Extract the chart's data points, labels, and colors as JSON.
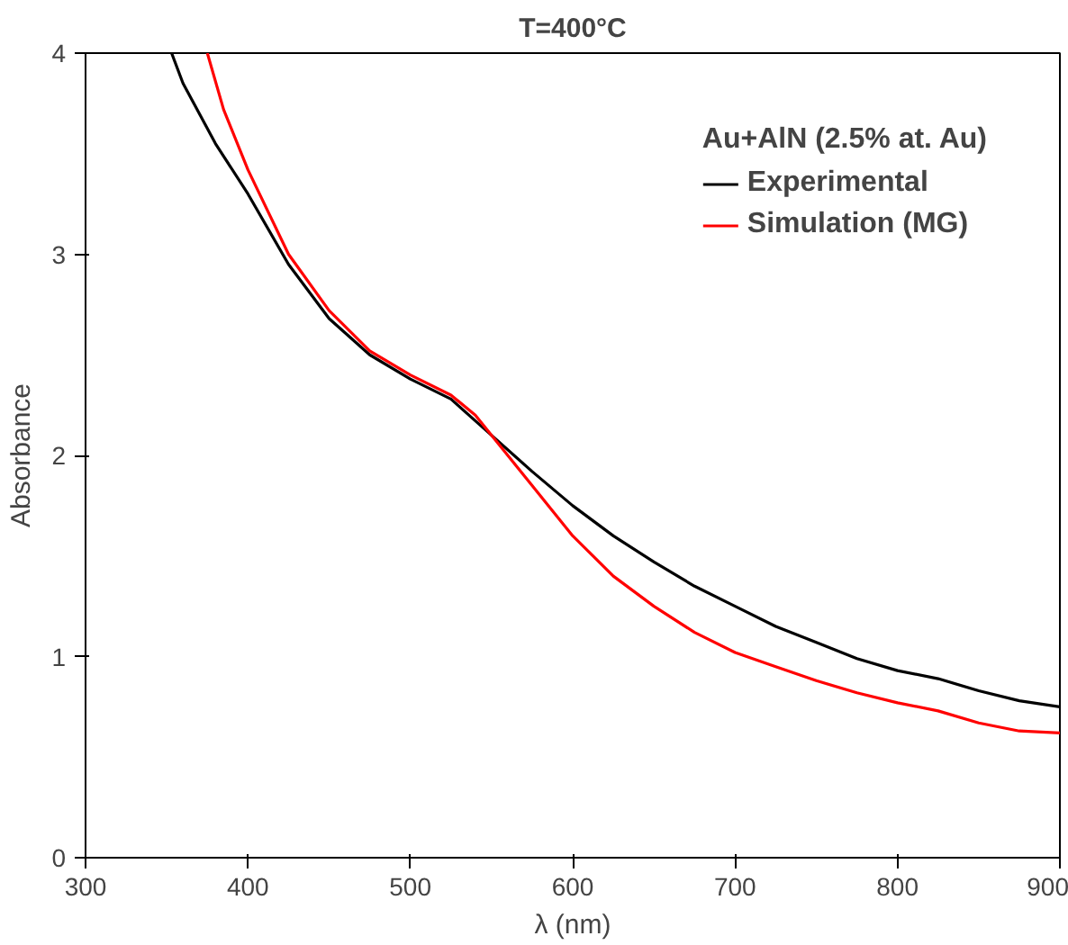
{
  "chart_data": {
    "type": "line",
    "title": "T=400°C",
    "xlabel": "λ (nm)",
    "ylabel": "Absorbance",
    "legend_title": "Au+AlN (2.5% at. Au)",
    "legend": "top right",
    "grid": false,
    "xlim": [
      300,
      900
    ],
    "xticks": [
      300,
      400,
      500,
      600,
      700,
      800,
      900
    ],
    "ylim": [
      0,
      4
    ],
    "yticks": [
      0,
      1,
      2,
      3,
      4
    ],
    "series": [
      {
        "name": "Experimental",
        "color": "#000000",
        "x": [
          353,
          360,
          370,
          380,
          400,
          425,
          450,
          475,
          500,
          525,
          550,
          575,
          600,
          625,
          650,
          675,
          700,
          725,
          750,
          775,
          800,
          825,
          850,
          875,
          900
        ],
        "values": [
          4.0,
          3.85,
          3.7,
          3.55,
          3.3,
          2.95,
          2.68,
          2.5,
          2.38,
          2.28,
          2.1,
          1.92,
          1.75,
          1.6,
          1.47,
          1.35,
          1.25,
          1.15,
          1.07,
          0.99,
          0.93,
          0.89,
          0.83,
          0.78,
          0.75
        ]
      },
      {
        "name": "Simulation (MG)",
        "color": "#ff0000",
        "x": [
          375,
          385,
          400,
          425,
          450,
          475,
          500,
          525,
          540,
          560,
          575,
          600,
          625,
          650,
          675,
          700,
          725,
          750,
          775,
          800,
          825,
          850,
          875,
          900
        ],
        "values": [
          4.0,
          3.72,
          3.42,
          3.0,
          2.72,
          2.52,
          2.4,
          2.3,
          2.2,
          2.0,
          1.85,
          1.6,
          1.4,
          1.25,
          1.12,
          1.02,
          0.95,
          0.88,
          0.82,
          0.77,
          0.73,
          0.67,
          0.63,
          0.62
        ]
      }
    ]
  }
}
